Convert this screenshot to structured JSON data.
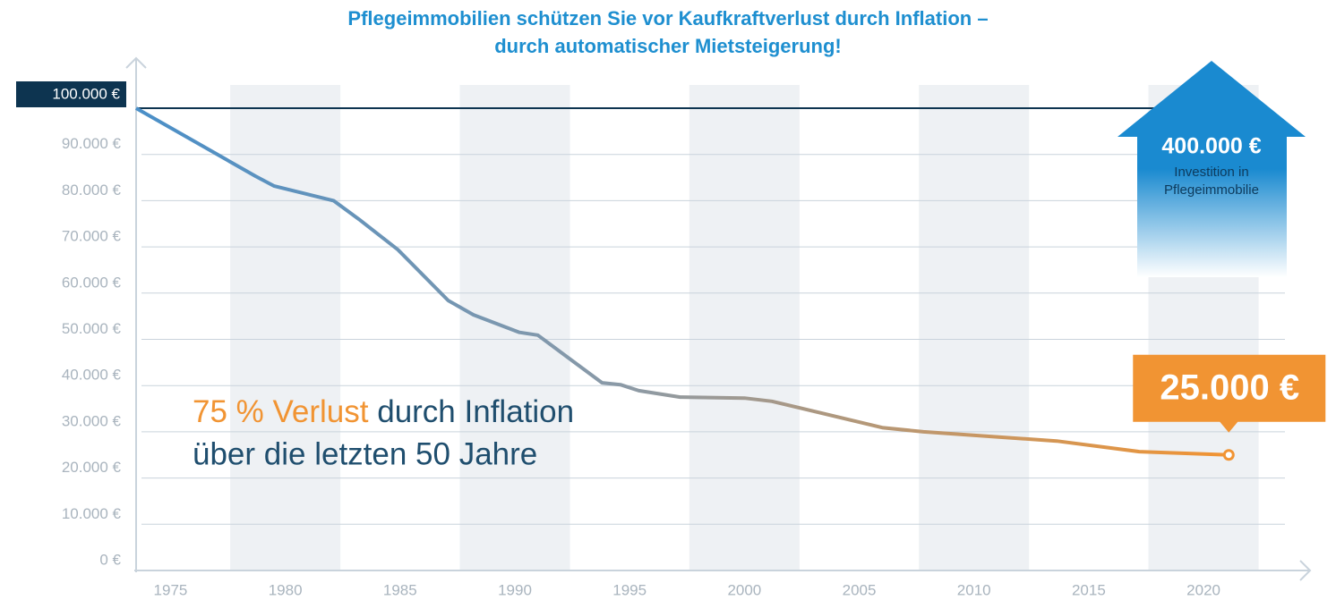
{
  "chart_data": {
    "type": "line",
    "title_lines": [
      "Pflegeimmobilien schützen Sie vor Kaufkraftverlust durch Inflation –",
      "durch automatischer Mietsteigerung!"
    ],
    "x": [
      1973.5,
      1978.7,
      1979.5,
      1982.1,
      1983.2,
      1984.9,
      1987.1,
      1988.2,
      1990.2,
      1991.0,
      1993.8,
      1994.6,
      1995.4,
      1997.2,
      2000.0,
      2001.2,
      2006.0,
      2007.8,
      2013.6,
      2017.2,
      2021.1
    ],
    "values": [
      100000,
      85300,
      83200,
      80000,
      76000,
      69400,
      58400,
      55300,
      51500,
      50900,
      40600,
      40200,
      38900,
      37500,
      37300,
      36600,
      30900,
      30000,
      28000,
      25700,
      25000
    ],
    "value_labels": [
      null,
      null,
      null,
      null,
      null,
      null,
      null,
      null,
      null,
      null,
      null,
      null,
      null,
      null,
      null,
      null,
      null,
      null,
      null,
      null,
      "25.000 €"
    ],
    "colors": [
      "#4a8fc8",
      "#8c9aa6",
      "#f19433"
    ],
    "xlim": [
      1973.5,
      2024.6
    ],
    "xticks": [
      1975,
      1980,
      1985,
      1990,
      1995,
      2000,
      2005,
      2010,
      2015,
      2020
    ],
    "ylim": [
      0,
      100000
    ],
    "yticks": [
      {
        "value": 0,
        "label": "0 €"
      },
      {
        "value": 10000,
        "label": "10.000 €"
      },
      {
        "value": 20000,
        "label": "20.000 €"
      },
      {
        "value": 30000,
        "label": "30.000 €"
      },
      {
        "value": 40000,
        "label": "40.000 €"
      },
      {
        "value": 50000,
        "label": "50.000 €"
      },
      {
        "value": 60000,
        "label": "60.000 €"
      },
      {
        "value": 70000,
        "label": "70.000 €"
      },
      {
        "value": 80000,
        "label": "80.000 €"
      },
      {
        "value": 90000,
        "label": "90.000 €"
      },
      {
        "value": 100000,
        "label": "100.000 €"
      }
    ],
    "grid": true,
    "annotations": {
      "loss_highlight": "75 % Verlust",
      "loss_rest": " durch Inflation",
      "loss_line2": "über die letzten 50 Jahre",
      "investment_amount": "400.000 €",
      "investment_text": [
        "Investition in",
        "Pflegeimmobilie"
      ]
    }
  }
}
